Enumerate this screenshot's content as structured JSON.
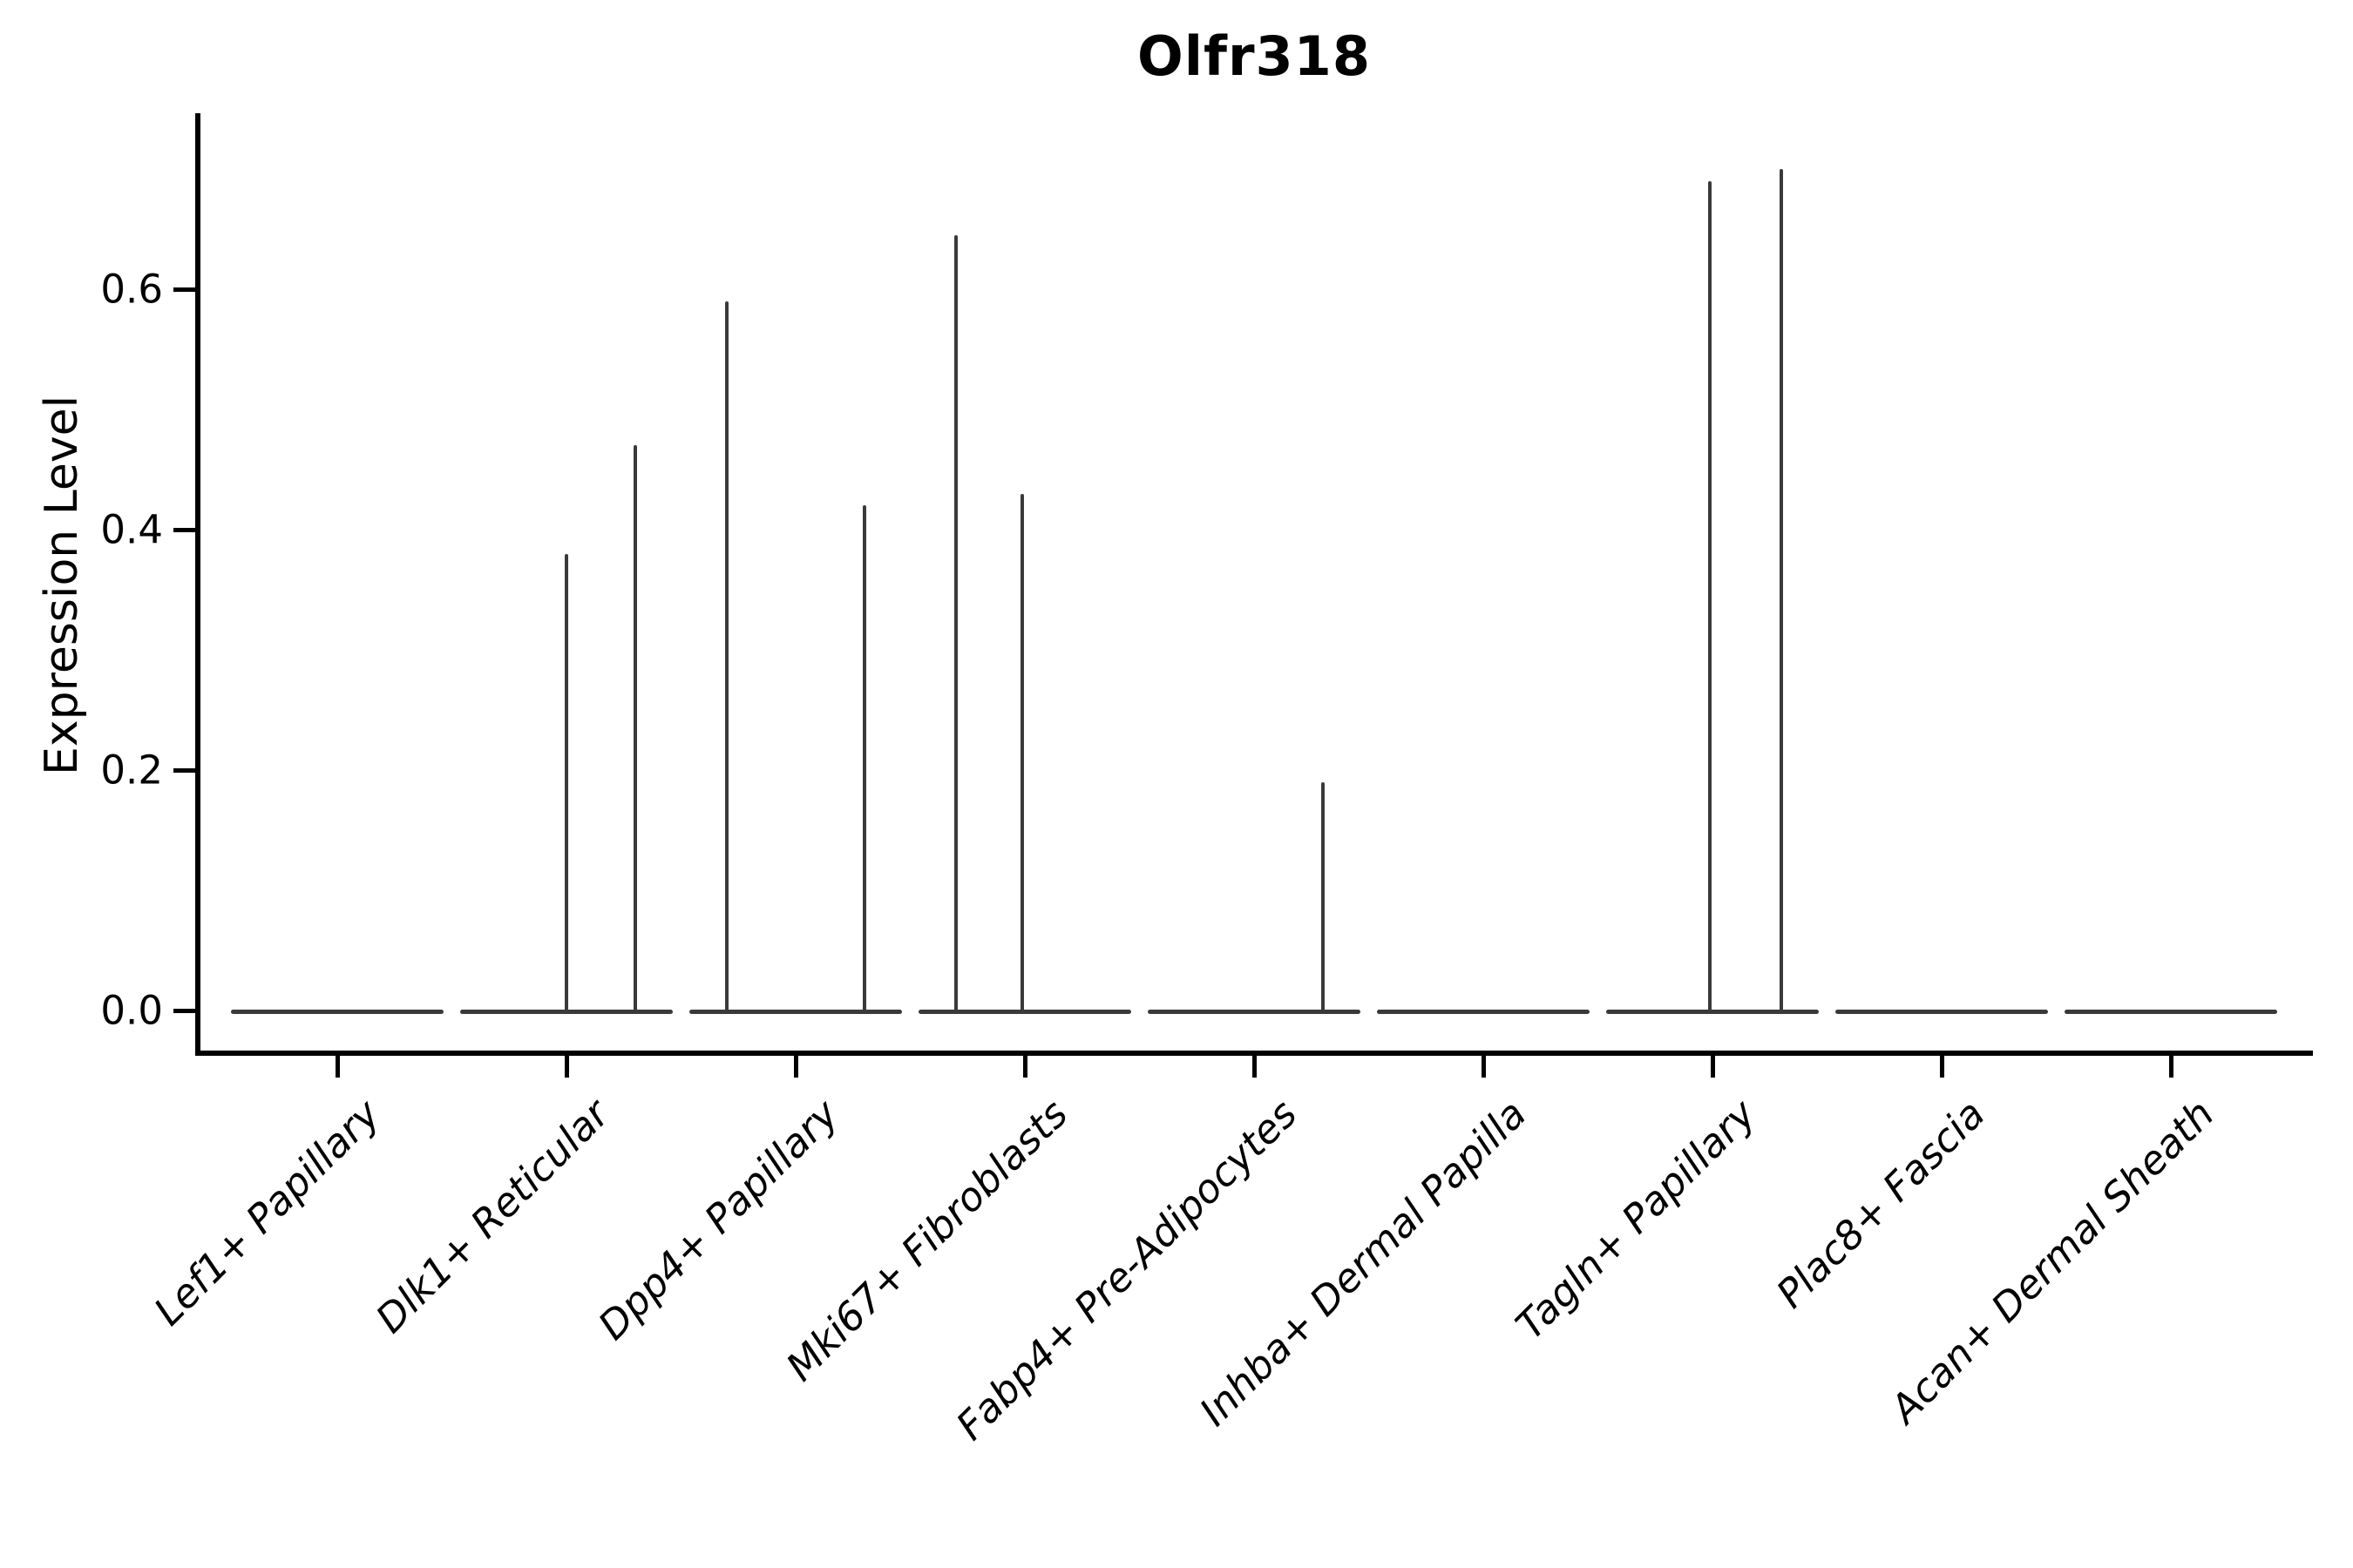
{
  "title": "Olfr318",
  "axes": {
    "ylabel": "Expression Level",
    "ytick_labels": [
      "0.0",
      "0.2",
      "0.4",
      "0.6"
    ]
  },
  "chart_data": {
    "type": "violin",
    "title": "Olfr318",
    "ylabel": "Expression Level",
    "xlabel": "",
    "ylim": [
      0.0,
      0.746
    ],
    "yticks": [
      0.0,
      0.2,
      0.4,
      0.6
    ],
    "ytick_labels": [
      "0.0",
      "0.2",
      "0.4",
      "0.6"
    ],
    "grid": false,
    "legend": null,
    "categories": [
      "Lef1+ Papillary",
      "Dlk1+ Reticular",
      "Dpp4+ Papillary",
      "Mki67+ Fibroblasts",
      "Fabp4+ Pre-Adipocytes",
      "Inhba+ Dermal Papilla",
      "Tagln+ Papillary",
      "Plac8+ Fascia",
      "Acan+ Dermal Sheath"
    ],
    "series": [
      {
        "name": "Lef1+ Papillary",
        "baseline_value": 0.0,
        "spikes": []
      },
      {
        "name": "Dlk1+ Reticular",
        "baseline_value": 0.0,
        "spikes": [
          {
            "offset_frac": 0.0,
            "value": 0.38
          },
          {
            "offset_frac": 0.3,
            "value": 0.47
          }
        ]
      },
      {
        "name": "Dpp4+ Papillary",
        "baseline_value": 0.0,
        "spikes": [
          {
            "offset_frac": -0.3,
            "value": 0.59
          },
          {
            "offset_frac": 0.3,
            "value": 0.42
          }
        ]
      },
      {
        "name": "Mki67+ Fibroblasts",
        "baseline_value": 0.0,
        "spikes": [
          {
            "offset_frac": -0.3,
            "value": 0.645
          },
          {
            "offset_frac": -0.01,
            "value": 0.43
          }
        ]
      },
      {
        "name": "Fabp4+ Pre-Adipocytes",
        "baseline_value": 0.0,
        "spikes": [
          {
            "offset_frac": 0.3,
            "value": 0.19
          }
        ]
      },
      {
        "name": "Inhba+ Dermal Papilla",
        "baseline_value": 0.0,
        "spikes": []
      },
      {
        "name": "Tagln+ Papillary",
        "baseline_value": 0.0,
        "spikes": [
          {
            "offset_frac": -0.01,
            "value": 0.69
          },
          {
            "offset_frac": 0.3,
            "value": 0.7
          }
        ]
      },
      {
        "name": "Plac8+ Fascia",
        "baseline_value": 0.0,
        "spikes": []
      },
      {
        "name": "Acan+ Dermal Sheath",
        "baseline_value": 0.0,
        "spikes": []
      }
    ]
  },
  "colors": {
    "violin": "#3a3a3a",
    "axis": "#000000",
    "text": "#000000",
    "background": "#ffffff"
  }
}
